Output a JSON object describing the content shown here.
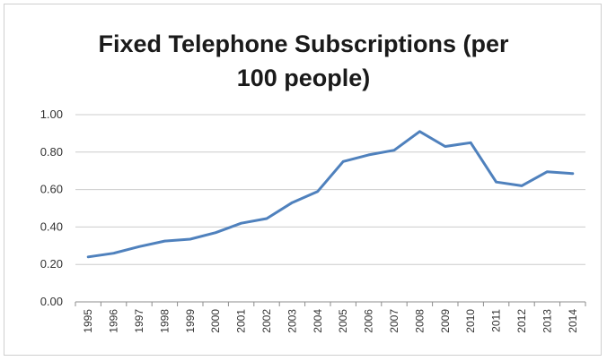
{
  "chart_data": {
    "type": "line",
    "title_line1": "Fixed Telephone Subscriptions (per",
    "title_line2": "100 people)",
    "xlabel": "",
    "ylabel": "",
    "ylim": [
      0,
      1
    ],
    "y_ticks": [
      "0.00",
      "0.20",
      "0.40",
      "0.60",
      "0.80",
      "1.00"
    ],
    "y_tick_values": [
      0,
      0.2,
      0.4,
      0.6,
      0.8,
      1.0
    ],
    "grid": true,
    "legend": "none",
    "categories": [
      "1995",
      "1996",
      "1997",
      "1998",
      "1999",
      "2000",
      "2001",
      "2002",
      "2003",
      "2004",
      "2005",
      "2006",
      "2007",
      "2008",
      "2009",
      "2010",
      "2011",
      "2012",
      "2013",
      "2014"
    ],
    "series": [
      {
        "values": [
          0.24,
          0.26,
          0.295,
          0.325,
          0.335,
          0.37,
          0.42,
          0.445,
          0.53,
          0.59,
          0.75,
          0.785,
          0.81,
          0.91,
          0.83,
          0.85,
          0.64,
          0.62,
          0.695,
          0.685
        ],
        "color": "#4f81bd"
      }
    ]
  }
}
